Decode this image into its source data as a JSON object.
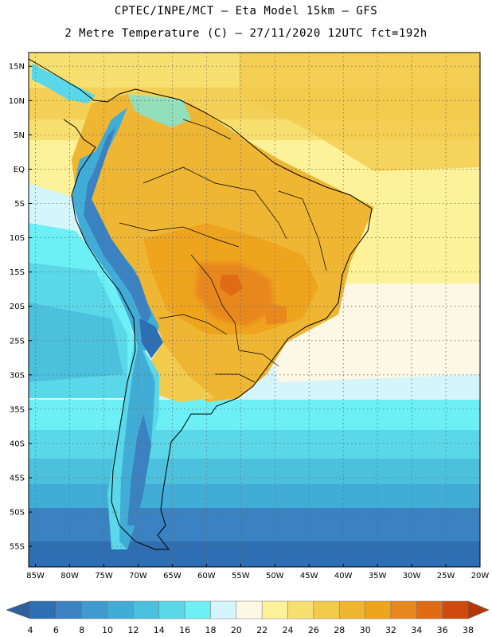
{
  "header": {
    "line1": "CPTEC/INPE/MCT –  Eta Model 15km – GFS",
    "line2": "2 Metre Temperature (C) – 27/11/2020 12UTC fct=192h"
  },
  "map": {
    "lon_range": [
      -86,
      -20
    ],
    "lat_range": [
      17,
      -58
    ],
    "lat_labels": [
      "15N",
      "10N",
      "5N",
      "EQ",
      "5S",
      "10S",
      "15S",
      "20S",
      "25S",
      "30S",
      "35S",
      "40S",
      "45S",
      "50S",
      "55S"
    ],
    "lat_values": [
      15,
      10,
      5,
      0,
      -5,
      -10,
      -15,
      -20,
      -25,
      -30,
      -35,
      -40,
      -45,
      -50,
      -55
    ],
    "lon_labels": [
      "85W",
      "80W",
      "75W",
      "70W",
      "65W",
      "60W",
      "55W",
      "50W",
      "45W",
      "40W",
      "35W",
      "30W",
      "25W",
      "20W"
    ],
    "lon_values": [
      -85,
      -80,
      -75,
      -70,
      -65,
      -60,
      -55,
      -50,
      -45,
      -40,
      -35,
      -30,
      -25,
      -20
    ]
  },
  "colorbar": {
    "values": [
      "4",
      "6",
      "8",
      "10",
      "12",
      "14",
      "16",
      "18",
      "20",
      "22",
      "24",
      "26",
      "28",
      "30",
      "32",
      "34",
      "36",
      "38"
    ],
    "colors": [
      "#2e6eb2",
      "#3a82c1",
      "#3f9acd",
      "#41add6",
      "#4cc1dd",
      "#5ad7e8",
      "#6ceff5",
      "#d4f6fb",
      "#fdf8e6",
      "#fdf29a",
      "#f8e070",
      "#f2ca4c",
      "#efb634",
      "#efa41e",
      "#e8881e",
      "#df6c14",
      "#cf4a0c",
      "#b2380a"
    ]
  }
}
